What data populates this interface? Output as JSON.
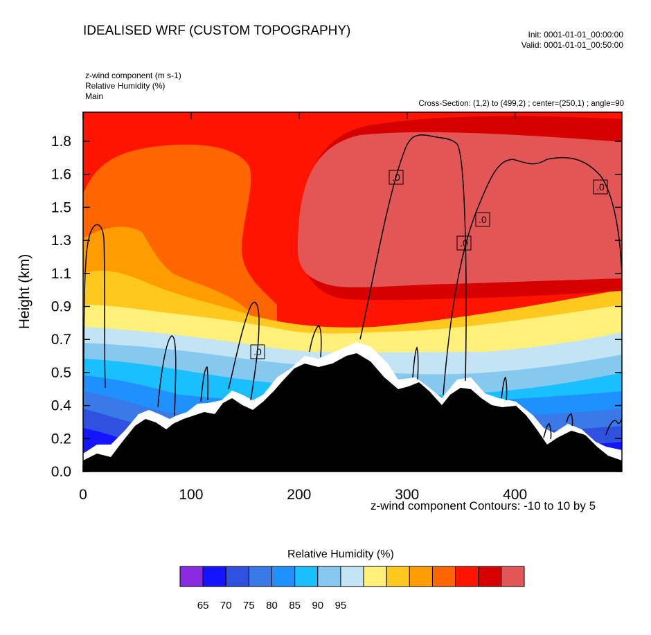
{
  "header": {
    "title": "IDEALISED WRF (CUSTOM TOPOGRAPHY)",
    "init": "Init: 0001-01-01_00:00:00",
    "valid": "Valid: 0001-01-01_00:50:00",
    "field_labels": [
      "z-wind component   (m s-1)",
      "Relative Humidity   (%)",
      "Main"
    ],
    "cross_section": "Cross-Section: (1,2) to (499,2) ; center=(250,1) ; angle=90"
  },
  "chart_data": {
    "type": "area",
    "xlabel": "",
    "ylabel": "Height (km)",
    "x_ticks": [
      "0",
      "100",
      "200",
      "300",
      "400"
    ],
    "x_tick_values": [
      0,
      100,
      200,
      300,
      400
    ],
    "y_ticks": [
      "0.0",
      "0.2",
      "0.4",
      "0.5",
      "0.7",
      "0.9",
      "1.1",
      "1.3",
      "1.5",
      "1.6",
      "1.8"
    ],
    "xlim": [
      0,
      499
    ],
    "contour_note": "z-wind component Contours: -10 to 10 by 5",
    "contour_labels": [
      ".0",
      ".0",
      ".0",
      ".0",
      ".0",
      ".0"
    ],
    "colorbar": {
      "title": "Relative Humidity  (%)",
      "colors": [
        "#8a2be2",
        "#1414ff",
        "#3050e0",
        "#3a7ae8",
        "#1e90ff",
        "#19bfff",
        "#87c8ee",
        "#c2e4f5",
        "#fff07a",
        "#ffc81e",
        "#ff9d00",
        "#ff6600",
        "#ff1400",
        "#d60000",
        "#e35656"
      ],
      "labels": [
        "65",
        "70",
        "75",
        "80",
        "85",
        "90",
        "95"
      ]
    },
    "terrain_height_km": [
      [
        0,
        0.07
      ],
      [
        10,
        0.12
      ],
      [
        25,
        0.09
      ],
      [
        40,
        0.16
      ],
      [
        55,
        0.27
      ],
      [
        65,
        0.3
      ],
      [
        75,
        0.26
      ],
      [
        85,
        0.24
      ],
      [
        95,
        0.31
      ],
      [
        110,
        0.36
      ],
      [
        125,
        0.32
      ],
      [
        135,
        0.38
      ],
      [
        145,
        0.36
      ],
      [
        155,
        0.39
      ],
      [
        165,
        0.36
      ],
      [
        180,
        0.44
      ],
      [
        195,
        0.52
      ],
      [
        210,
        0.54
      ],
      [
        225,
        0.52
      ],
      [
        240,
        0.56
      ],
      [
        255,
        0.63
      ],
      [
        270,
        0.58
      ],
      [
        285,
        0.53
      ],
      [
        300,
        0.51
      ],
      [
        310,
        0.53
      ],
      [
        320,
        0.5
      ],
      [
        330,
        0.4
      ],
      [
        340,
        0.48
      ],
      [
        350,
        0.51
      ],
      [
        360,
        0.47
      ],
      [
        375,
        0.39
      ],
      [
        395,
        0.41
      ],
      [
        410,
        0.38
      ],
      [
        420,
        0.32
      ],
      [
        430,
        0.2
      ],
      [
        445,
        0.21
      ],
      [
        460,
        0.26
      ],
      [
        470,
        0.24
      ],
      [
        485,
        0.16
      ],
      [
        499,
        0.11
      ]
    ]
  }
}
